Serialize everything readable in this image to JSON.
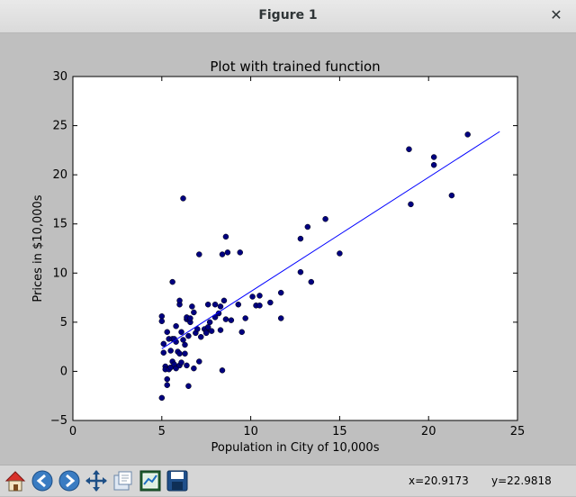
{
  "window": {
    "title": "Figure 1",
    "close_glyph": "✕"
  },
  "toolbar": {
    "buttons": [
      {
        "name": "home-icon"
      },
      {
        "name": "back-icon"
      },
      {
        "name": "forward-icon"
      },
      {
        "name": "pan-icon"
      },
      {
        "name": "zoom-icon"
      },
      {
        "name": "configure-subplots-icon"
      },
      {
        "name": "save-icon"
      }
    ],
    "x_readout": "x=20.9173",
    "y_readout": "y=22.9818"
  },
  "chart_data": {
    "type": "scatter",
    "title": "Plot with trained function",
    "xlabel": "Population in City of 10,000s",
    "ylabel": "Prices in $10,000s",
    "xlim": [
      0,
      25
    ],
    "ylim": [
      -5,
      30
    ],
    "xticks": [
      "0",
      "5",
      "10",
      "15",
      "20",
      "25"
    ],
    "yticks": [
      "−5",
      "0",
      "5",
      "10",
      "15",
      "20",
      "25",
      "30"
    ],
    "grid": false,
    "colors": {
      "points": "#000080",
      "line": "#0000ff"
    },
    "series": [
      {
        "kind": "scatter",
        "points": [
          [
            5.0,
            -2.7
          ],
          [
            5.0,
            5.6
          ],
          [
            5.0,
            5.1
          ],
          [
            5.1,
            2.8
          ],
          [
            5.1,
            1.9
          ],
          [
            5.2,
            0.5
          ],
          [
            5.2,
            0.2
          ],
          [
            5.3,
            -1.4
          ],
          [
            5.3,
            -0.8
          ],
          [
            5.3,
            4.0
          ],
          [
            5.4,
            0.2
          ],
          [
            5.4,
            3.3
          ],
          [
            5.5,
            2.1
          ],
          [
            5.5,
            0.4
          ],
          [
            5.6,
            3.3
          ],
          [
            5.6,
            1.0
          ],
          [
            5.6,
            9.1
          ],
          [
            5.7,
            3.3
          ],
          [
            5.7,
            0.7
          ],
          [
            5.8,
            3.0
          ],
          [
            5.8,
            0.3
          ],
          [
            5.8,
            4.6
          ],
          [
            5.9,
            2.0
          ],
          [
            6.0,
            1.8
          ],
          [
            6.0,
            6.8
          ],
          [
            6.0,
            7.2
          ],
          [
            6.0,
            0.6
          ],
          [
            6.1,
            4.0
          ],
          [
            6.1,
            0.9
          ],
          [
            6.2,
            3.2
          ],
          [
            6.2,
            17.6
          ],
          [
            6.3,
            1.8
          ],
          [
            6.3,
            2.7
          ],
          [
            6.4,
            5.3
          ],
          [
            6.4,
            5.5
          ],
          [
            6.4,
            0.6
          ],
          [
            6.5,
            -1.5
          ],
          [
            6.5,
            3.6
          ],
          [
            6.6,
            5.0
          ],
          [
            6.6,
            5.4
          ],
          [
            6.7,
            6.6
          ],
          [
            6.8,
            6.0
          ],
          [
            6.8,
            0.3
          ],
          [
            6.9,
            3.9
          ],
          [
            7.0,
            4.3
          ],
          [
            7.1,
            11.9
          ],
          [
            7.1,
            1.0
          ],
          [
            7.2,
            3.5
          ],
          [
            7.4,
            4.3
          ],
          [
            7.5,
            4.1
          ],
          [
            7.5,
            3.9
          ],
          [
            7.6,
            6.8
          ],
          [
            7.6,
            4.5
          ],
          [
            7.7,
            5.0
          ],
          [
            7.8,
            4.1
          ],
          [
            8.0,
            6.8
          ],
          [
            8.0,
            5.5
          ],
          [
            8.2,
            5.9
          ],
          [
            8.3,
            4.2
          ],
          [
            8.3,
            6.6
          ],
          [
            8.4,
            0.1
          ],
          [
            8.4,
            11.9
          ],
          [
            8.5,
            7.2
          ],
          [
            8.6,
            13.7
          ],
          [
            8.6,
            5.3
          ],
          [
            8.7,
            12.1
          ],
          [
            8.9,
            5.2
          ],
          [
            9.3,
            6.8
          ],
          [
            9.4,
            12.1
          ],
          [
            9.5,
            4.0
          ],
          [
            9.7,
            5.4
          ],
          [
            10.1,
            7.6
          ],
          [
            10.3,
            6.7
          ],
          [
            10.5,
            7.7
          ],
          [
            10.5,
            6.7
          ],
          [
            11.1,
            7.0
          ],
          [
            11.7,
            8.0
          ],
          [
            11.7,
            5.4
          ],
          [
            12.8,
            13.5
          ],
          [
            12.8,
            10.1
          ],
          [
            13.2,
            14.7
          ],
          [
            13.4,
            9.1
          ],
          [
            14.2,
            15.5
          ],
          [
            15.0,
            12.0
          ],
          [
            18.9,
            22.6
          ],
          [
            19.0,
            17.0
          ],
          [
            20.3,
            21.8
          ],
          [
            20.3,
            21.0
          ],
          [
            21.3,
            17.9
          ],
          [
            22.2,
            24.1
          ]
        ]
      },
      {
        "kind": "line",
        "points": [
          [
            5.0,
            2.3
          ],
          [
            24.0,
            24.4
          ]
        ]
      }
    ]
  }
}
